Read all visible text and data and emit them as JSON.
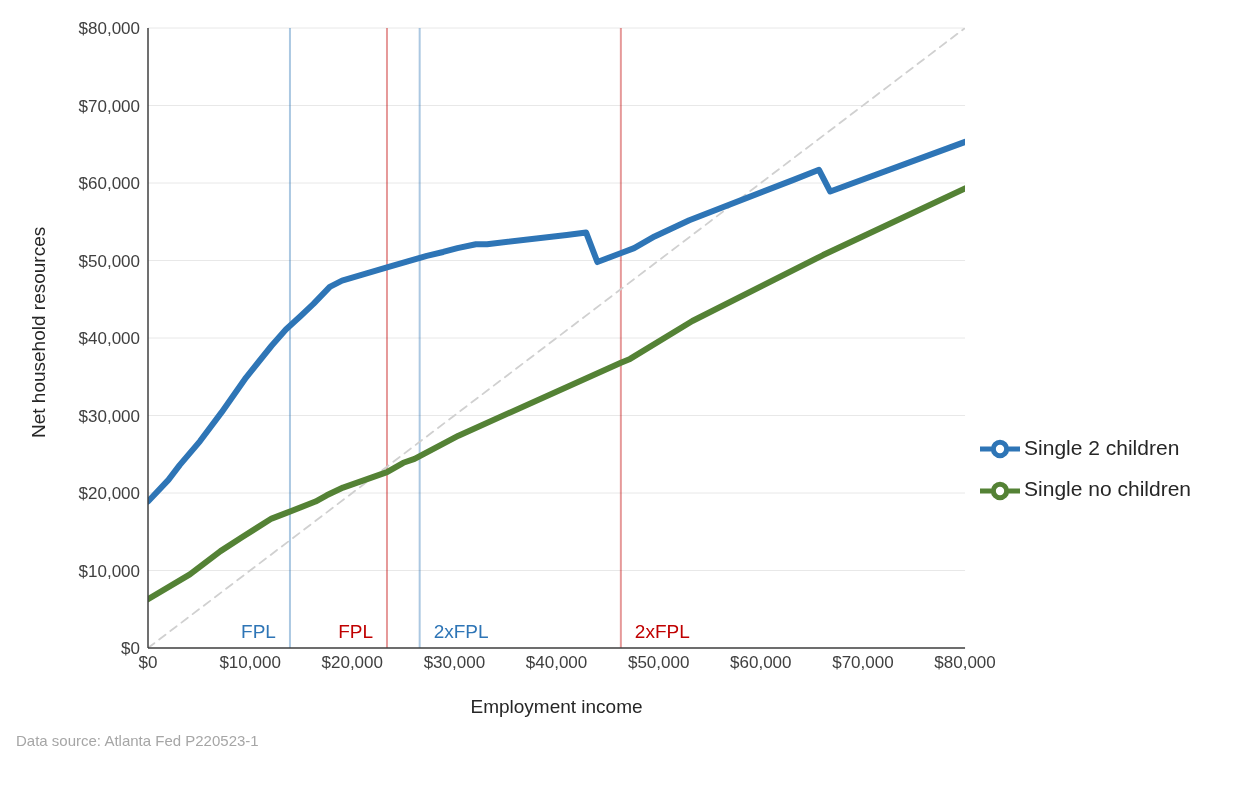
{
  "chart_data": {
    "type": "line",
    "xlabel": "Employment income",
    "ylabel": "Net household resources",
    "xlim": [
      0,
      80000
    ],
    "ylim": [
      0,
      80000
    ],
    "xticks": [
      {
        "value": 0,
        "label": "$0"
      },
      {
        "value": 10000,
        "label": "$10,000"
      },
      {
        "value": 20000,
        "label": "$20,000"
      },
      {
        "value": 30000,
        "label": "$30,000"
      },
      {
        "value": 40000,
        "label": "$40,000"
      },
      {
        "value": 50000,
        "label": "$50,000"
      },
      {
        "value": 60000,
        "label": "$60,000"
      },
      {
        "value": 70000,
        "label": "$70,000"
      },
      {
        "value": 80000,
        "label": "$80,000"
      }
    ],
    "yticks": [
      {
        "value": 0,
        "label": "$0"
      },
      {
        "value": 10000,
        "label": "$10,000"
      },
      {
        "value": 20000,
        "label": "$20,000"
      },
      {
        "value": 30000,
        "label": "$30,000"
      },
      {
        "value": 40000,
        "label": "$40,000"
      },
      {
        "value": 50000,
        "label": "$50,000"
      },
      {
        "value": 60000,
        "label": "$60,000"
      },
      {
        "value": 70000,
        "label": "$70,000"
      },
      {
        "value": 80000,
        "label": "$80,000"
      }
    ],
    "grid": "y",
    "legend": "right",
    "marker": "none",
    "series": [
      {
        "type": "line",
        "color": "#d0d0d0",
        "line_style": "dashed",
        "x": [
          0,
          80000
        ],
        "values": [
          0,
          80000
        ]
      },
      {
        "name": "Single 2 children",
        "color": "#2e75b6",
        "x": [
          0,
          2000,
          3100,
          5100,
          7200,
          9600,
          12100,
          13500,
          15000,
          16200,
          17800,
          19000,
          23400,
          27300,
          28900,
          30300,
          32100,
          33200,
          41000,
          42900,
          44000,
          46400,
          47600,
          49600,
          53000,
          63200,
          65700,
          66800,
          80000
        ],
        "values": [
          18900,
          21700,
          23600,
          26700,
          30400,
          34900,
          39000,
          41100,
          42900,
          44400,
          46600,
          47400,
          49100,
          50600,
          51100,
          51600,
          52100,
          52100,
          53300,
          53600,
          49800,
          51000,
          51600,
          53100,
          55200,
          60400,
          61700,
          58900,
          65300
        ]
      },
      {
        "name": "Single no children",
        "color": "#548235",
        "x": [
          0,
          4100,
          7100,
          9200,
          12100,
          13500,
          16400,
          17500,
          19100,
          23400,
          25000,
          26100,
          30400,
          46300,
          47200,
          53300,
          66100,
          80000
        ],
        "values": [
          6300,
          9500,
          12500,
          14300,
          16700,
          17400,
          18900,
          19700,
          20700,
          22700,
          23900,
          24400,
          27400,
          36800,
          37300,
          42200,
          50700,
          59300
        ]
      }
    ],
    "ref_lines": [
      {
        "axis": "x",
        "value": 13900,
        "label": "FPL",
        "color": "#2e75b6"
      },
      {
        "axis": "x",
        "value": 23400,
        "label": "FPL",
        "color": "#c00000"
      },
      {
        "axis": "x",
        "value": 26600,
        "label": "2xFPL",
        "color": "#2e75b6"
      },
      {
        "axis": "x",
        "value": 46300,
        "label": "2xFPL",
        "color": "#c00000"
      }
    ],
    "annotations": [
      "Data source: Atlanta Fed P220523-1"
    ]
  }
}
